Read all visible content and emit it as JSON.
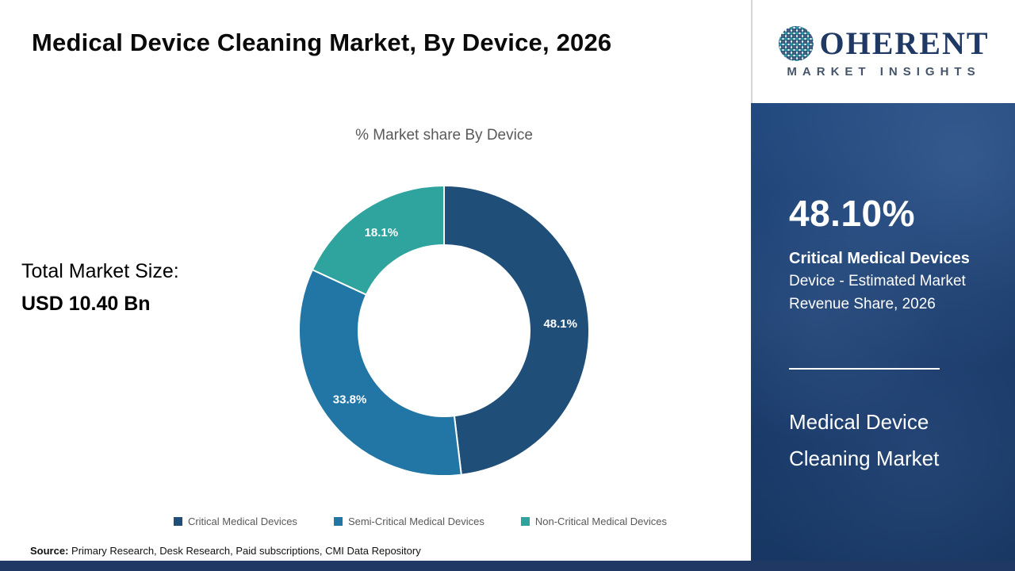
{
  "header": {
    "title": "Medical Device Cleaning Market, By Device, 2026",
    "logo": {
      "brand_rest": "OHERENT",
      "tagline": "MARKET INSIGHTS"
    }
  },
  "left": {
    "total_label": "Total Market Size:",
    "total_value": "USD 10.40 Bn"
  },
  "chart_data": {
    "type": "pie",
    "donut": true,
    "title": "% Market share By Device",
    "categories": [
      "Critical Medical Devices",
      "Semi-Critical Medical Devices",
      "Non-Critical Medical Devices"
    ],
    "values": [
      48.1,
      33.8,
      18.1
    ],
    "labels": [
      "48.1%",
      "33.8%",
      "18.1%"
    ],
    "colors": [
      "#1f4e79",
      "#2176a5",
      "#2fa49e"
    ],
    "legend_position": "bottom",
    "start_angle_deg": -90,
    "direction": "clockwise"
  },
  "side_panel": {
    "stat_value": "48.10%",
    "stat_title": "Critical Medical Devices",
    "stat_line2": "Device - Estimated Market",
    "stat_line3": "Revenue Share, 2026",
    "market_line1": "Medical Device",
    "market_line2": "Cleaning Market"
  },
  "footer": {
    "source_label": "Source:",
    "source_text": " Primary Research, Desk Research, Paid subscriptions, CMI Data Repository"
  }
}
